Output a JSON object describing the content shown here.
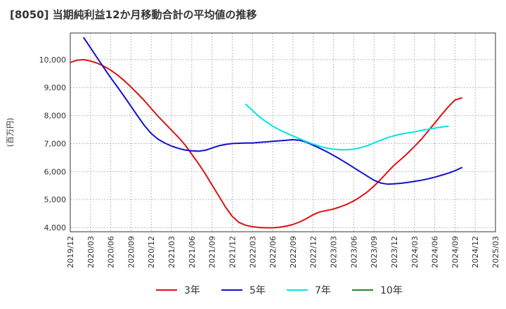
{
  "title": "[8050]  当期純利益12か月移動合計の平均値の推移",
  "chart_data": {
    "type": "line",
    "title": "[8050]  当期純利益12か月移動合計の平均値の推移",
    "ylabel": "(百万円)",
    "xlabel": "",
    "ylim": [
      3850,
      10950
    ],
    "yticks": [
      4000,
      5000,
      6000,
      7000,
      8000,
      9000,
      10000
    ],
    "ytick_labels": [
      "4,000",
      "5,000",
      "6,000",
      "7,000",
      "8,000",
      "9,000",
      "10,000"
    ],
    "xticks": [
      "2019/12",
      "2020/03",
      "2020/06",
      "2020/09",
      "2020/12",
      "2021/03",
      "2021/06",
      "2021/09",
      "2021/12",
      "2022/03",
      "2022/06",
      "2022/09",
      "2022/12",
      "2023/03",
      "2023/06",
      "2023/09",
      "2023/12",
      "2024/03",
      "2024/06",
      "2024/09",
      "2024/12",
      "2025/03"
    ],
    "grid": true,
    "legend_position": "bottom",
    "series": [
      {
        "name": "3年",
        "color": "#dd1111",
        "points": [
          [
            "2019/12",
            9900
          ],
          [
            "2020/01",
            9980
          ],
          [
            "2020/02",
            10000
          ],
          [
            "2020/03",
            9950
          ],
          [
            "2020/04",
            9870
          ],
          [
            "2020/05",
            9760
          ],
          [
            "2020/06",
            9620
          ],
          [
            "2020/07",
            9450
          ],
          [
            "2020/08",
            9250
          ],
          [
            "2020/09",
            9020
          ],
          [
            "2020/10",
            8780
          ],
          [
            "2020/11",
            8530
          ],
          [
            "2020/12",
            8250
          ],
          [
            "2021/01",
            7980
          ],
          [
            "2021/02",
            7730
          ],
          [
            "2021/03",
            7480
          ],
          [
            "2021/04",
            7230
          ],
          [
            "2021/05",
            6950
          ],
          [
            "2021/06",
            6620
          ],
          [
            "2021/07",
            6280
          ],
          [
            "2021/08",
            5920
          ],
          [
            "2021/09",
            5520
          ],
          [
            "2021/10",
            5130
          ],
          [
            "2021/11",
            4730
          ],
          [
            "2021/12",
            4400
          ],
          [
            "2022/01",
            4180
          ],
          [
            "2022/02",
            4080
          ],
          [
            "2022/03",
            4030
          ],
          [
            "2022/04",
            4000
          ],
          [
            "2022/05",
            3990
          ],
          [
            "2022/06",
            3990
          ],
          [
            "2022/07",
            4010
          ],
          [
            "2022/08",
            4050
          ],
          [
            "2022/09",
            4110
          ],
          [
            "2022/10",
            4200
          ],
          [
            "2022/11",
            4320
          ],
          [
            "2022/12",
            4460
          ],
          [
            "2023/01",
            4560
          ],
          [
            "2023/02",
            4610
          ],
          [
            "2023/03",
            4660
          ],
          [
            "2023/04",
            4740
          ],
          [
            "2023/05",
            4830
          ],
          [
            "2023/06",
            4950
          ],
          [
            "2023/07",
            5100
          ],
          [
            "2023/08",
            5270
          ],
          [
            "2023/09",
            5480
          ],
          [
            "2023/10",
            5720
          ],
          [
            "2023/11",
            5980
          ],
          [
            "2023/12",
            6230
          ],
          [
            "2024/01",
            6440
          ],
          [
            "2024/02",
            6660
          ],
          [
            "2024/03",
            6900
          ],
          [
            "2024/04",
            7150
          ],
          [
            "2024/05",
            7440
          ],
          [
            "2024/06",
            7730
          ],
          [
            "2024/07",
            8030
          ],
          [
            "2024/08",
            8310
          ],
          [
            "2024/09",
            8560
          ],
          [
            "2024/10",
            8630
          ]
        ]
      },
      {
        "name": "5年",
        "color": "#1111cc",
        "points": [
          [
            "2020/02",
            10780
          ],
          [
            "2020/03",
            10420
          ],
          [
            "2020/04",
            10060
          ],
          [
            "2020/05",
            9700
          ],
          [
            "2020/06",
            9350
          ],
          [
            "2020/07",
            9020
          ],
          [
            "2020/08",
            8680
          ],
          [
            "2020/09",
            8330
          ],
          [
            "2020/10",
            7980
          ],
          [
            "2020/11",
            7640
          ],
          [
            "2020/12",
            7360
          ],
          [
            "2021/01",
            7160
          ],
          [
            "2021/02",
            7020
          ],
          [
            "2021/03",
            6910
          ],
          [
            "2021/04",
            6830
          ],
          [
            "2021/05",
            6770
          ],
          [
            "2021/06",
            6740
          ],
          [
            "2021/07",
            6730
          ],
          [
            "2021/08",
            6760
          ],
          [
            "2021/09",
            6840
          ],
          [
            "2021/10",
            6920
          ],
          [
            "2021/11",
            6970
          ],
          [
            "2021/12",
            7000
          ],
          [
            "2022/01",
            7010
          ],
          [
            "2022/02",
            7020
          ],
          [
            "2022/03",
            7020
          ],
          [
            "2022/04",
            7040
          ],
          [
            "2022/05",
            7060
          ],
          [
            "2022/06",
            7080
          ],
          [
            "2022/07",
            7100
          ],
          [
            "2022/08",
            7120
          ],
          [
            "2022/09",
            7140
          ],
          [
            "2022/10",
            7120
          ],
          [
            "2022/11",
            7050
          ],
          [
            "2022/12",
            6940
          ],
          [
            "2023/01",
            6830
          ],
          [
            "2023/02",
            6710
          ],
          [
            "2023/03",
            6580
          ],
          [
            "2023/04",
            6440
          ],
          [
            "2023/05",
            6290
          ],
          [
            "2023/06",
            6140
          ],
          [
            "2023/07",
            5990
          ],
          [
            "2023/08",
            5840
          ],
          [
            "2023/09",
            5690
          ],
          [
            "2023/10",
            5590
          ],
          [
            "2023/11",
            5550
          ],
          [
            "2023/12",
            5560
          ],
          [
            "2024/01",
            5580
          ],
          [
            "2024/02",
            5610
          ],
          [
            "2024/03",
            5650
          ],
          [
            "2024/04",
            5690
          ],
          [
            "2024/05",
            5740
          ],
          [
            "2024/06",
            5800
          ],
          [
            "2024/07",
            5870
          ],
          [
            "2024/08",
            5940
          ],
          [
            "2024/09",
            6030
          ],
          [
            "2024/10",
            6140
          ]
        ]
      },
      {
        "name": "7年",
        "color": "#00e5e5",
        "points": [
          [
            "2022/02",
            8400
          ],
          [
            "2022/03",
            8180
          ],
          [
            "2022/04",
            7960
          ],
          [
            "2022/05",
            7780
          ],
          [
            "2022/06",
            7620
          ],
          [
            "2022/07",
            7490
          ],
          [
            "2022/08",
            7380
          ],
          [
            "2022/09",
            7270
          ],
          [
            "2022/10",
            7170
          ],
          [
            "2022/11",
            7070
          ],
          [
            "2022/12",
            6980
          ],
          [
            "2023/01",
            6900
          ],
          [
            "2023/02",
            6840
          ],
          [
            "2023/03",
            6800
          ],
          [
            "2023/04",
            6780
          ],
          [
            "2023/05",
            6780
          ],
          [
            "2023/06",
            6800
          ],
          [
            "2023/07",
            6850
          ],
          [
            "2023/08",
            6920
          ],
          [
            "2023/09",
            7020
          ],
          [
            "2023/10",
            7120
          ],
          [
            "2023/11",
            7210
          ],
          [
            "2023/12",
            7280
          ],
          [
            "2024/01",
            7340
          ],
          [
            "2024/02",
            7380
          ],
          [
            "2024/03",
            7420
          ],
          [
            "2024/04",
            7470
          ],
          [
            "2024/05",
            7510
          ],
          [
            "2024/06",
            7550
          ],
          [
            "2024/07",
            7590
          ],
          [
            "2024/08",
            7620
          ]
        ]
      },
      {
        "name": "10年",
        "color": "#228822",
        "points": []
      }
    ]
  }
}
